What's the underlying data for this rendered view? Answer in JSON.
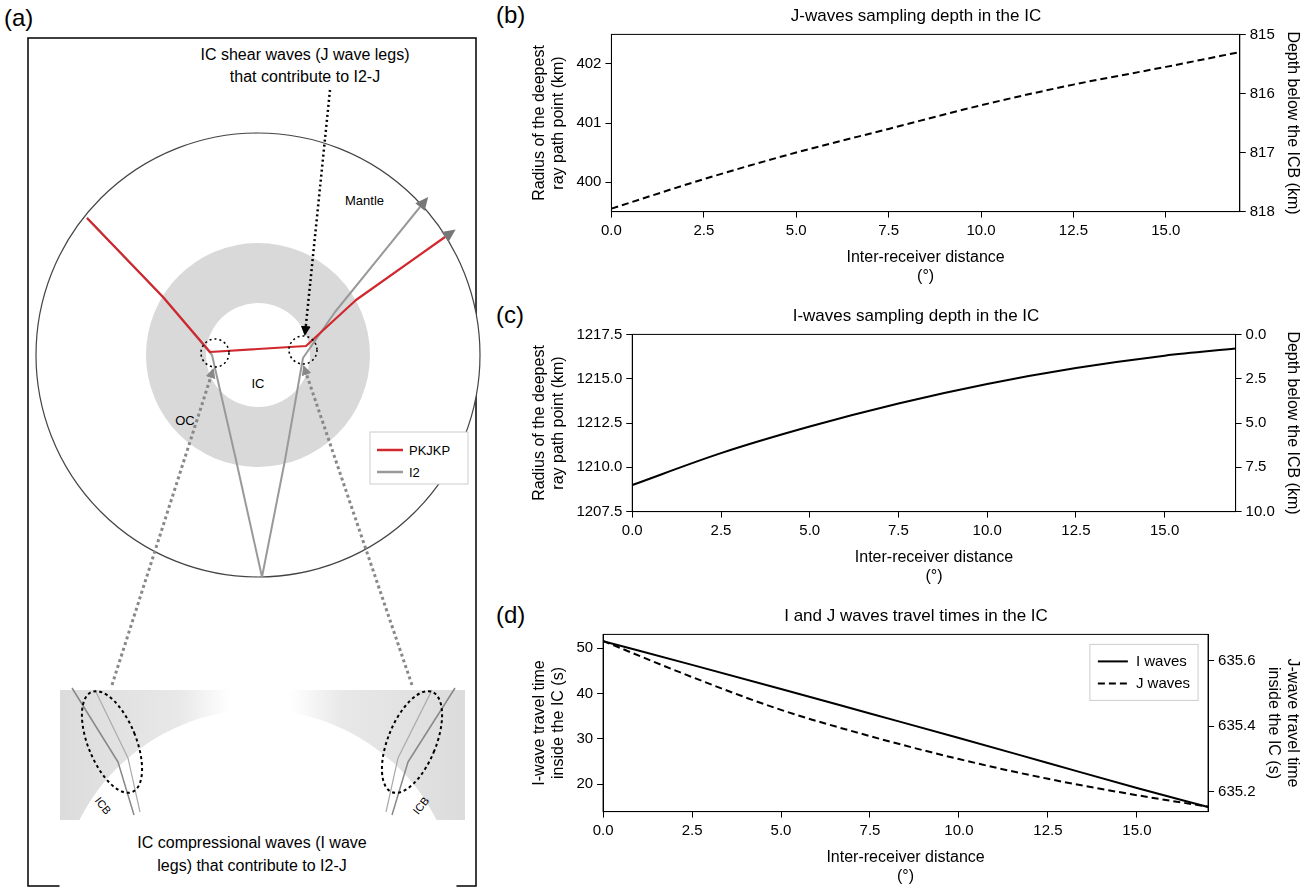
{
  "panel_a": {
    "label": "(a)",
    "top_annotation": [
      "IC shear waves (J wave legs)",
      "that contribute to I2-J"
    ],
    "region_labels": {
      "mantle": "Mantle",
      "outer_core": "OC",
      "inner_core": "IC"
    },
    "legend": [
      {
        "name": "PKJKP",
        "color": "#d0282e"
      },
      {
        "name": "I2",
        "color": "#999999"
      }
    ],
    "boundary_labels": [
      "ICB",
      "ICB"
    ],
    "bottom_annotation": [
      "IC compressional waves (I wave",
      "legs) that contribute to I2-J"
    ]
  },
  "chart_data": [
    {
      "panel": "(b)",
      "type": "line",
      "title": "J-waves sampling depth in the IC",
      "xlabel": "Inter-receiver distance (°)",
      "ylabel": "Radius of the deepest ray path point (km)",
      "y2label": "Depth below the ICB (km)",
      "x": [
        0,
        2.5,
        5,
        7.5,
        10,
        12.5,
        15,
        17
      ],
      "values": [
        399.55,
        400.05,
        400.5,
        400.9,
        401.3,
        401.65,
        401.95,
        402.2
      ],
      "color": "#000000",
      "line_style": "dashed",
      "xlim": [
        0,
        17
      ],
      "xticks": [
        {
          "value": 0,
          "label": "0.0"
        },
        2.5,
        {
          "value": 5,
          "label": "5.0"
        },
        7.5,
        {
          "value": 10,
          "label": "10.0"
        },
        12.5,
        {
          "value": 15,
          "label": "15.0"
        }
      ],
      "ylim": [
        399.5,
        402.5
      ],
      "yticks": [
        400,
        401,
        402
      ],
      "y2lim": [
        818,
        815
      ],
      "y2ticks": [
        815,
        816,
        817,
        818
      ],
      "grid": false
    },
    {
      "panel": "(c)",
      "type": "line",
      "title": "I-waves sampling depth in the IC",
      "xlabel": "Inter-receiver distance (°)",
      "ylabel": "Radius of the deepest ray path point (km)",
      "y2label": "Depth below the ICB (km)",
      "x": [
        0,
        2.5,
        5,
        7.5,
        10,
        12.5,
        15,
        17
      ],
      "values": [
        1209.0,
        1210.8,
        1212.3,
        1213.6,
        1214.7,
        1215.6,
        1216.3,
        1216.7
      ],
      "color": "#000000",
      "line_style": "solid",
      "xlim": [
        0,
        17
      ],
      "xticks": [
        {
          "value": 0,
          "label": "0.0"
        },
        2.5,
        {
          "value": 5,
          "label": "5.0"
        },
        7.5,
        {
          "value": 10,
          "label": "10.0"
        },
        12.5,
        {
          "value": 15,
          "label": "15.0"
        }
      ],
      "ylim": [
        1207.5,
        1217.5
      ],
      "yticks": [
        1207.5,
        {
          "value": 1210,
          "label": "1210.0"
        },
        1212.5,
        {
          "value": 1215,
          "label": "1215.0"
        },
        1217.5
      ],
      "y2lim": [
        10,
        0
      ],
      "y2ticks": [
        {
          "value": 0,
          "label": "0.0"
        },
        2.5,
        {
          "value": 5,
          "label": "5.0"
        },
        7.5,
        {
          "value": 10,
          "label": "10.0"
        }
      ],
      "grid": false
    },
    {
      "panel": "(d)",
      "type": "line",
      "title": "I and J waves travel times in the IC",
      "xlabel": "Inter-receiver distance (°)",
      "ylabel": "I-wave travel time inside the IC (s)",
      "y2label": "J-wave travel time inside the IC (s)",
      "x": [
        0,
        2.5,
        5,
        7.5,
        10,
        12.5,
        15,
        17
      ],
      "series": [
        {
          "name": "I waves",
          "color": "#000000",
          "line_style": "solid",
          "axis": "y",
          "values": [
            51.5,
            46.3,
            41.0,
            35.6,
            30.2,
            24.7,
            19.2,
            15.0
          ]
        },
        {
          "name": "J waves",
          "color": "#000000",
          "line_style": "dashed",
          "axis": "y2",
          "values": [
            635.66,
            635.55,
            635.45,
            635.37,
            635.3,
            635.24,
            635.19,
            635.155
          ]
        }
      ],
      "xlim": [
        0,
        17
      ],
      "xticks": [
        {
          "value": 0,
          "label": "0.0"
        },
        2.5,
        {
          "value": 5,
          "label": "5.0"
        },
        7.5,
        {
          "value": 10,
          "label": "10.0"
        },
        12.5,
        {
          "value": 15,
          "label": "15.0"
        }
      ],
      "ylim": [
        14,
        53
      ],
      "yticks": [
        20,
        30,
        40,
        50
      ],
      "y2lim": [
        635.14,
        635.68
      ],
      "y2ticks": [
        635.2,
        635.4,
        635.6
      ],
      "legend": "upper right",
      "grid": false
    }
  ]
}
